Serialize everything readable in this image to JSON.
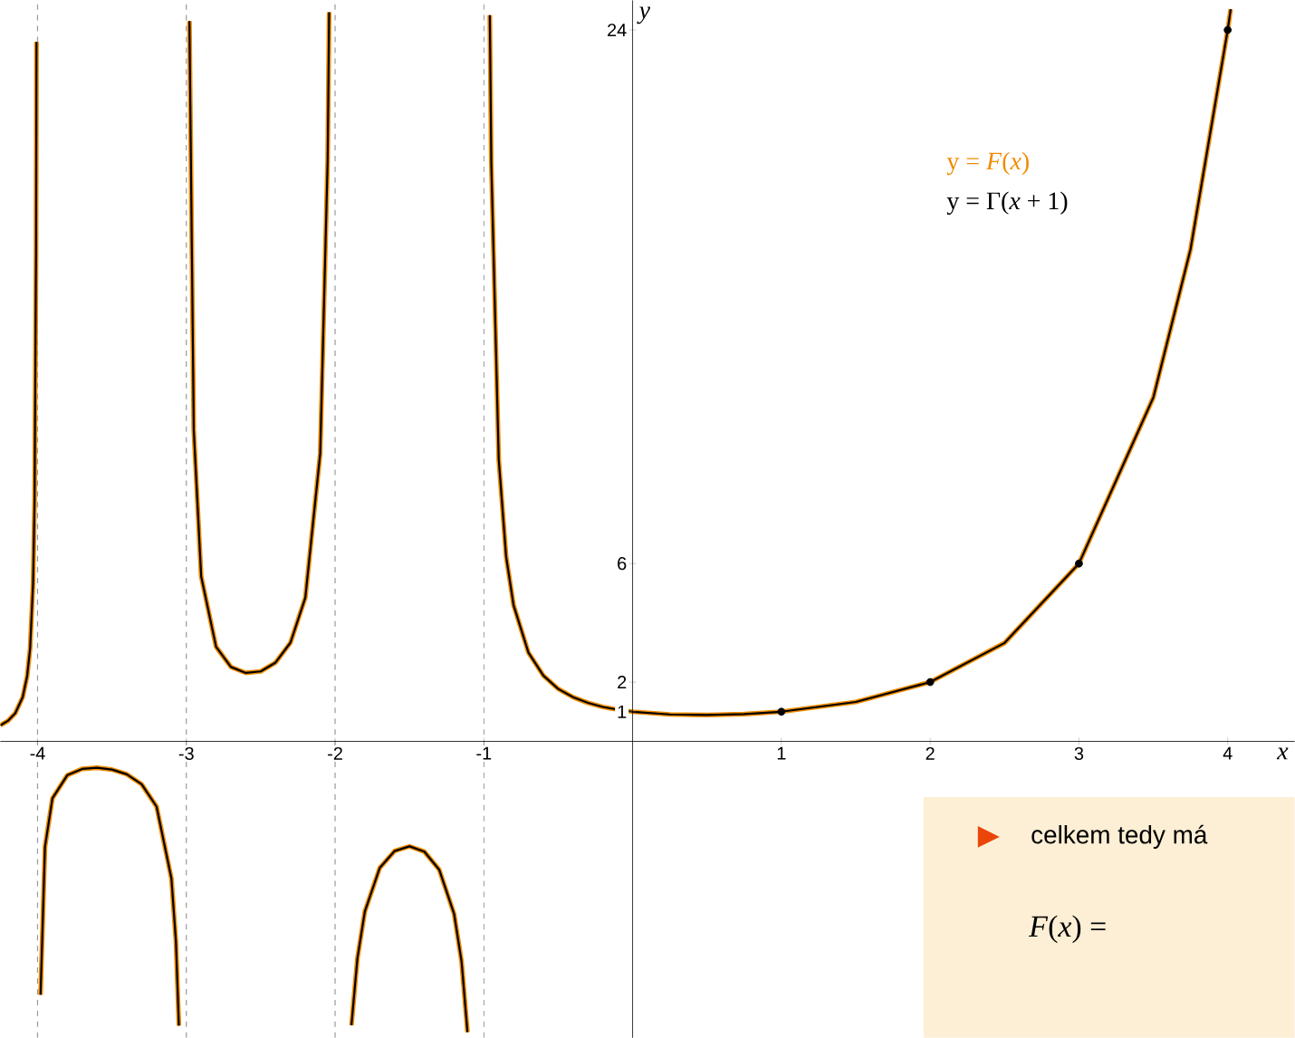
{
  "chart_data": {
    "type": "line",
    "x": [
      -4.25,
      -4.2,
      -4.15,
      -4.1,
      -4.07,
      -4.05,
      -4.03,
      -4.02,
      -4.01,
      -4.007,
      -4,
      -3.98,
      -3.95,
      -3.9,
      -3.8,
      -3.7,
      -3.6,
      -3.5,
      -3.4,
      -3.3,
      -3.2,
      -3.1,
      -3.07,
      -3.05,
      -3,
      -2.979,
      -2.95,
      -2.9,
      -2.8,
      -2.7,
      -2.6,
      -2.5,
      -2.4,
      -2.3,
      -2.2,
      -2.1,
      -2.05,
      -2.04,
      -2,
      -1.89,
      -1.85,
      -1.8,
      -1.7,
      -1.6,
      -1.5,
      -1.4,
      -1.3,
      -1.2,
      -1.15,
      -1.11,
      -1,
      -0.96,
      -0.95,
      -0.9,
      -0.85,
      -0.8,
      -0.7,
      -0.6,
      -0.5,
      -0.4,
      -0.3,
      -0.2,
      -0.1,
      0,
      0.25,
      0.5,
      0.75,
      1,
      1.5,
      2,
      2.5,
      3,
      3.5,
      3.75,
      4,
      4.02
    ],
    "series": [
      {
        "name": "y = *F*(*x*)",
        "color": "#f08c00",
        "values": [
          0.54,
          0.69,
          0.95,
          1.49,
          2.2,
          3.14,
          5.35,
          8.13,
          16.5,
          23.6,
          null,
          -8.55,
          -3.56,
          -1.92,
          -1.14,
          -0.93,
          -0.89,
          -0.95,
          -1.11,
          -1.45,
          -2.2,
          -4.63,
          -6.74,
          -9.59,
          null,
          24.3,
          10.5,
          5.56,
          3.19,
          2.51,
          2.31,
          2.36,
          2.66,
          3.33,
          4.85,
          9.72,
          19.6,
          24.6,
          null,
          -9.58,
          -7.32,
          -5.74,
          -4.27,
          -3.7,
          -3.54,
          -3.72,
          -4.33,
          -5.82,
          -7.42,
          -9.81,
          null,
          24.5,
          19.5,
          9.51,
          6.22,
          4.59,
          2.99,
          2.22,
          1.77,
          1.49,
          1.3,
          1.16,
          1.07,
          1,
          0.91,
          0.89,
          0.92,
          1,
          1.33,
          2,
          3.32,
          6,
          11.6,
          16.6,
          24,
          24.7
        ]
      },
      {
        "name": "y = Γ(*x* + 1)",
        "color": "#000000",
        "values": [
          0.54,
          0.69,
          0.95,
          1.49,
          2.2,
          3.14,
          5.35,
          8.13,
          16.5,
          23.6,
          null,
          -8.55,
          -3.56,
          -1.92,
          -1.14,
          -0.93,
          -0.89,
          -0.95,
          -1.11,
          -1.45,
          -2.2,
          -4.63,
          -6.74,
          -9.59,
          null,
          24.3,
          10.5,
          5.56,
          3.19,
          2.51,
          2.31,
          2.36,
          2.66,
          3.33,
          4.85,
          9.72,
          19.6,
          24.6,
          null,
          -9.58,
          -7.32,
          -5.74,
          -4.27,
          -3.7,
          -3.54,
          -3.72,
          -4.33,
          -5.82,
          -7.42,
          -9.81,
          null,
          24.5,
          19.5,
          9.51,
          6.22,
          4.59,
          2.99,
          2.22,
          1.77,
          1.49,
          1.3,
          1.16,
          1.07,
          1,
          0.91,
          0.89,
          0.92,
          1,
          1.33,
          2,
          3.32,
          6,
          11.6,
          16.6,
          24,
          24.7
        ]
      },
      {
        "type": "scatter",
        "color": "#000000",
        "x": [
          1,
          2,
          3,
          4
        ],
        "values": [
          1,
          2,
          6,
          24
        ]
      }
    ],
    "xlabel": "x",
    "ylabel": "y",
    "xlim": [
      -4.25,
      4.45
    ],
    "ylim": [
      -10,
      25
    ],
    "xticks": [
      -4,
      -3,
      -2,
      -1,
      1,
      2,
      3,
      4
    ],
    "yticks": [
      1,
      2,
      6,
      24
    ],
    "ref_lines": [
      {
        "axis": "x",
        "value": -4,
        "color": "#999999",
        "line_style": "dashed"
      },
      {
        "axis": "x",
        "value": -3,
        "color": "#999999",
        "line_style": "dashed"
      },
      {
        "axis": "x",
        "value": -2,
        "color": "#999999",
        "line_style": "dashed"
      },
      {
        "axis": "x",
        "value": -1,
        "color": "#999999",
        "line_style": "dashed"
      }
    ],
    "legend": "top right",
    "line_style": "solid",
    "grid": false,
    "annotations": [
      "celkem tedy má",
      "*F*(*x*) ="
    ]
  }
}
